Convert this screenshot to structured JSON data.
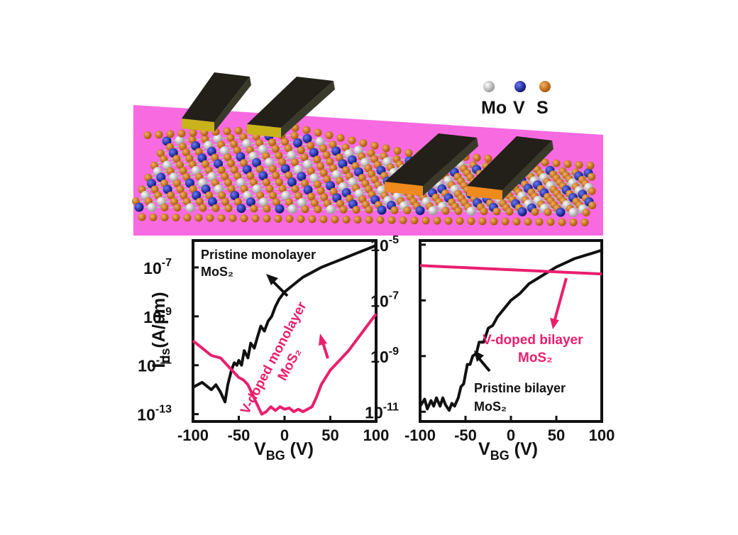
{
  "colors": {
    "substrate": "#f76ae0",
    "mo_atom": "#d8d8d8",
    "v_atom": "#1a2aa8",
    "s_atom": "#d47a1a",
    "pristine": "#111111",
    "doped": "#ea1e6e",
    "electrode_top": "#222018",
    "electrode_gold": "#c9b21a",
    "electrode_orange": "#ef8a1c"
  },
  "illustration": {
    "legend": [
      {
        "label": "Mo",
        "color": "#d8d8d8",
        "icon": "mo-atom-icon"
      },
      {
        "label": "V",
        "color": "#1a2aa8",
        "icon": "v-atom-icon"
      },
      {
        "label": "S",
        "color": "#d47a1a",
        "icon": "s-atom-icon"
      }
    ]
  },
  "chart_data": [
    {
      "type": "line",
      "xlabel_main": "V",
      "xlabel_sub": "BG",
      "xlabel_unit": " (V)",
      "ylabel_main": "I",
      "ylabel_sub": "ds",
      "ylabel_unit": "(A/μm)",
      "xlim": [
        -100,
        100
      ],
      "ylim_log10": [
        -13.3,
        -5.9
      ],
      "log_y": true,
      "xticks": [
        -100,
        -50,
        0,
        50,
        100
      ],
      "yticks": [
        {
          "exp": -7,
          "base": "10",
          "sup": "-7"
        },
        {
          "exp": -9,
          "base": "10",
          "sup": "-9"
        },
        {
          "exp": -11,
          "base": "10",
          "sup": "-11"
        },
        {
          "exp": -13,
          "base": "10",
          "sup": "-13"
        }
      ],
      "series": [
        {
          "name": "Pristine monolayer MoS₂",
          "color": "#111111",
          "x": [
            -100,
            -90,
            -80,
            -75,
            -70,
            -65,
            -62,
            -58,
            -55,
            -52,
            -50,
            -47,
            -44,
            -40,
            -37,
            -33,
            -30,
            -26,
            -22,
            -18,
            -14,
            -10,
            -6,
            -2,
            0,
            5,
            10,
            20,
            30,
            40,
            50,
            60,
            70,
            80,
            90,
            100
          ],
          "log10_y": [
            -11.9,
            -11.7,
            -12.0,
            -11.8,
            -12.1,
            -12.5,
            -11.8,
            -11.2,
            -10.9,
            -11.0,
            -10.8,
            -11.0,
            -10.4,
            -10.7,
            -10.1,
            -10.3,
            -9.9,
            -9.4,
            -9.6,
            -9.2,
            -9.0,
            -8.6,
            -8.3,
            -8.1,
            -8.0,
            -7.85,
            -7.7,
            -7.4,
            -7.2,
            -7.0,
            -6.85,
            -6.7,
            -6.55,
            -6.4,
            -6.25,
            -6.1
          ]
        },
        {
          "name": "V-doped monolayer MoS₂",
          "color": "#ea1e6e",
          "x": [
            -100,
            -90,
            -80,
            -70,
            -60,
            -55,
            -50,
            -45,
            -40,
            -35,
            -30,
            -25,
            -20,
            -15,
            -10,
            -5,
            0,
            5,
            10,
            15,
            20,
            25,
            30,
            35,
            40,
            45,
            50,
            55,
            60,
            70,
            80,
            90,
            100
          ],
          "log10_y": [
            -10.0,
            -10.3,
            -10.6,
            -10.7,
            -11.1,
            -11.3,
            -11.5,
            -11.6,
            -11.8,
            -12.2,
            -12.6,
            -13.0,
            -12.9,
            -12.7,
            -12.85,
            -12.7,
            -12.8,
            -12.75,
            -12.9,
            -12.8,
            -12.9,
            -12.8,
            -12.7,
            -12.3,
            -11.8,
            -11.5,
            -11.2,
            -11.0,
            -10.8,
            -10.4,
            -9.9,
            -9.4,
            -8.9
          ]
        }
      ],
      "annotations": [
        {
          "lines": [
            "Pristine monolayer",
            "MoS₂"
          ],
          "color": "#111111"
        },
        {
          "lines": [
            "V-doped monolayer",
            "MoS₂"
          ],
          "color": "#ea1e6e",
          "rotated": true
        }
      ]
    },
    {
      "type": "line",
      "xlabel_main": "V",
      "xlabel_sub": "BG",
      "xlabel_unit": " (V)",
      "xlim": [
        -100,
        100
      ],
      "ylim_log10": [
        -11.35,
        -4.85
      ],
      "log_y": true,
      "xticks": [
        -100,
        -50,
        0,
        50,
        100
      ],
      "yticks": [
        {
          "exp": -5,
          "base": "10",
          "sup": "-5"
        },
        {
          "exp": -7,
          "base": "10",
          "sup": "-7"
        },
        {
          "exp": -9,
          "base": "10",
          "sup": "-9"
        },
        {
          "exp": -11,
          "base": "10",
          "sup": "-11"
        }
      ],
      "series": [
        {
          "name": "Pristine bilayer MoS₂",
          "color": "#111111",
          "x": [
            -100,
            -95,
            -92,
            -88,
            -85,
            -82,
            -78,
            -75,
            -72,
            -68,
            -65,
            -62,
            -58,
            -55,
            -52,
            -48,
            -45,
            -42,
            -38,
            -35,
            -30,
            -25,
            -20,
            -15,
            -10,
            -5,
            0,
            10,
            20,
            30,
            40,
            50,
            60,
            70,
            80,
            90,
            100
          ],
          "log10_y": [
            -10.8,
            -10.55,
            -10.9,
            -10.6,
            -10.8,
            -10.5,
            -10.8,
            -10.5,
            -10.75,
            -10.95,
            -10.7,
            -10.8,
            -10.5,
            -10.1,
            -10.0,
            -9.3,
            -9.3,
            -9.0,
            -8.9,
            -8.5,
            -8.5,
            -8.0,
            -7.9,
            -7.6,
            -7.4,
            -7.2,
            -7.0,
            -6.75,
            -6.4,
            -6.2,
            -6.0,
            -5.8,
            -5.65,
            -5.5,
            -5.4,
            -5.3,
            -5.2
          ]
        },
        {
          "name": "V-doped bilayer MoS₂",
          "color": "#ea1e6e",
          "x": [
            -100,
            100
          ],
          "log10_y": [
            -5.75,
            -6.05
          ]
        }
      ],
      "annotations": [
        {
          "lines": [
            "V-doped bilayer",
            "MoS₂"
          ],
          "color": "#ea1e6e"
        },
        {
          "lines": [
            "Pristine bilayer",
            "MoS₂"
          ],
          "color": "#111111"
        }
      ]
    }
  ]
}
